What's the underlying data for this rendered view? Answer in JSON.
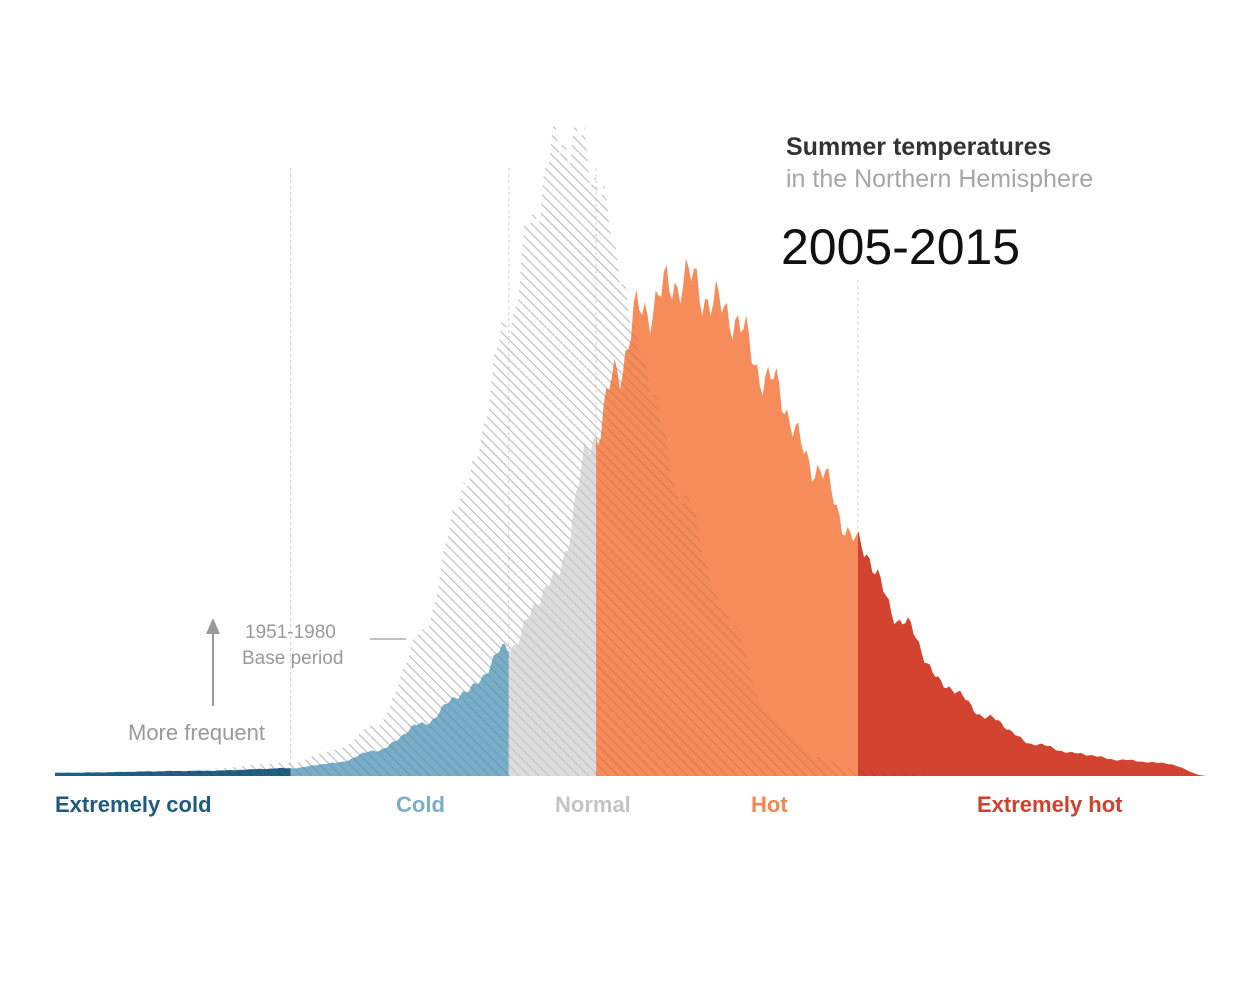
{
  "title": "Summer temperatures",
  "subtitle": "in the Northern Hemisphere",
  "period_label": "2005-2015",
  "base_note": {
    "line1": "1951-1980",
    "line2": "Base period"
  },
  "frequency_label": "More frequent",
  "colors": {
    "extremely_cold": "#1f5f83",
    "cold": "#79aec8",
    "normal": "#dcdcdc",
    "hot": "#f68c5a",
    "extremely_hot": "#d24430",
    "base_hatch": "#d9d9d9",
    "label_extremely_cold": "#1f5a80",
    "label_cold": "#7daec9",
    "label_normal": "#c4c4c4",
    "label_hot": "#f58552",
    "label_extremely_hot": "#d0402c"
  },
  "chart_data": {
    "type": "area",
    "title": "Summer temperatures",
    "subtitle": "in the Northern Hemisphere",
    "categories": [
      "Extremely cold",
      "Cold",
      "Normal",
      "Hot",
      "Extremely hot"
    ],
    "category_boundaries_sd": [
      -3,
      -0.5,
      0.5,
      3.5
    ],
    "x_range_sd": [
      -5.7,
      7.5
    ],
    "y_range": [
      0,
      1.0
    ],
    "grid": false,
    "series": [
      {
        "name": "1951-1980",
        "x": [
          -5.7,
          -4.5,
          -3.0,
          -2.5,
          -2.0,
          -1.5,
          -1.0,
          -0.5,
          -0.25,
          0,
          0.25,
          0.5,
          0.75,
          1.0,
          1.5,
          2.0,
          2.5,
          3.0,
          3.5,
          4.0,
          4.5,
          5.0,
          7.5
        ],
        "y": [
          0.0,
          0.005,
          0.02,
          0.04,
          0.08,
          0.22,
          0.45,
          0.7,
          0.85,
          0.97,
          0.99,
          0.93,
          0.8,
          0.65,
          0.43,
          0.25,
          0.09,
          0.03,
          0.01,
          0.004,
          0.0,
          0.0,
          0.0
        ]
      },
      {
        "name": "2005-2015",
        "x": [
          -5.7,
          -4.0,
          -3.0,
          -2.5,
          -2.0,
          -1.5,
          -1.0,
          -0.5,
          0,
          0.5,
          0.75,
          1.0,
          1.5,
          2.0,
          2.5,
          3.0,
          3.5,
          4.0,
          4.5,
          5.0,
          5.5,
          6.0,
          6.5,
          7.0,
          7.5
        ],
        "y": [
          0.005,
          0.008,
          0.012,
          0.02,
          0.04,
          0.08,
          0.13,
          0.2,
          0.3,
          0.53,
          0.63,
          0.72,
          0.77,
          0.72,
          0.61,
          0.48,
          0.36,
          0.24,
          0.14,
          0.09,
          0.05,
          0.035,
          0.025,
          0.02,
          0.0
        ]
      }
    ]
  }
}
